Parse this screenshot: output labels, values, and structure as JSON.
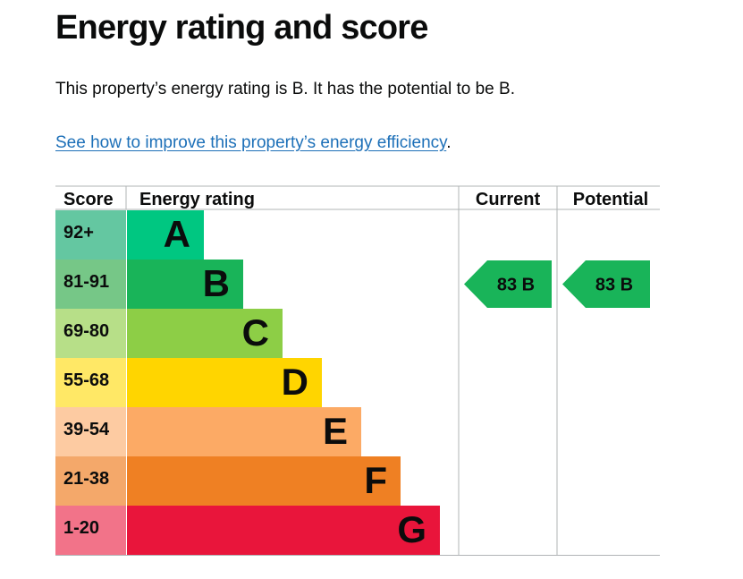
{
  "page": {
    "title": "Energy rating and score",
    "summary": "This property’s energy rating is B. It has the potential to be B.",
    "link_text": "See how to improve this property’s energy efficiency",
    "link_suffix": "."
  },
  "table": {
    "headers": {
      "score": "Score",
      "rating": "Energy rating",
      "current": "Current",
      "potential": "Potential"
    },
    "bands": [
      {
        "score": "92+",
        "letter": "A",
        "color": "#00c781",
        "score_bg": "#64c7a1",
        "text_color": "#0b0c0c"
      },
      {
        "score": "81-91",
        "letter": "B",
        "color": "#19b459",
        "score_bg": "#76c787",
        "text_color": "#0b0c0c"
      },
      {
        "score": "69-80",
        "letter": "C",
        "color": "#8dce46",
        "score_bg": "#b7df88",
        "text_color": "#0b0c0c"
      },
      {
        "score": "55-68",
        "letter": "D",
        "color": "#ffd500",
        "score_bg": "#ffe866",
        "text_color": "#0b0c0c"
      },
      {
        "score": "39-54",
        "letter": "E",
        "color": "#fcaa65",
        "score_bg": "#fdcba2",
        "text_color": "#0b0c0c"
      },
      {
        "score": "21-38",
        "letter": "F",
        "color": "#ef8023",
        "score_bg": "#f4a86a",
        "text_color": "#0b0c0c"
      },
      {
        "score": "1-20",
        "letter": "G",
        "color": "#e9153b",
        "score_bg": "#f27389",
        "text_color": "#0b0c0c"
      }
    ],
    "current": {
      "label": "83 B",
      "band": "B",
      "color": "#19b459"
    },
    "potential": {
      "label": "83 B",
      "band": "B",
      "color": "#19b459"
    },
    "line_color": "#b1b4b6"
  }
}
